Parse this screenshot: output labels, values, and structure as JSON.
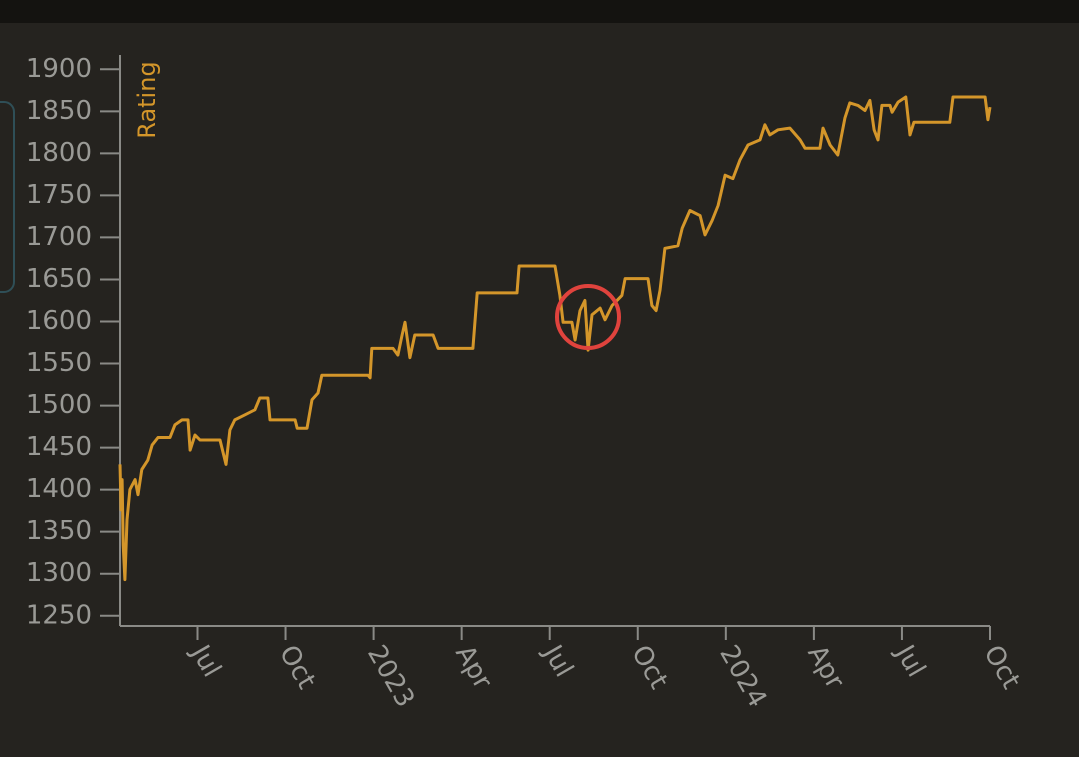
{
  "chart_data": {
    "type": "line",
    "y_label": "Rating",
    "color": "#d4962a",
    "x": [
      2022.28,
      2022.283,
      2022.286,
      2022.289,
      2022.294,
      2022.3,
      2022.308,
      2022.323,
      2022.331,
      2022.342,
      2022.359,
      2022.371,
      2022.388,
      2022.422,
      2022.436,
      2022.456,
      2022.473,
      2022.479,
      2022.493,
      2022.507,
      2022.564,
      2022.581,
      2022.592,
      2022.606,
      2022.635,
      2022.663,
      2022.677,
      2022.7,
      2022.706,
      2022.777,
      2022.783,
      2022.811,
      2022.825,
      2022.842,
      2022.853,
      2022.984,
      2022.99,
      2022.995,
      2023.055,
      2023.069,
      2023.081,
      2023.089,
      2023.103,
      2023.117,
      2023.169,
      2023.183,
      2023.282,
      2023.294,
      2023.407,
      2023.413,
      2023.515,
      2023.529,
      2023.538,
      2023.563,
      2023.572,
      2023.586,
      2023.6,
      2023.609,
      2023.62,
      2023.643,
      2023.657,
      2023.677,
      2023.705,
      2023.714,
      2023.779,
      2023.79,
      2023.802,
      2023.813,
      2023.827,
      2023.864,
      2023.876,
      2023.898,
      2023.927,
      2023.941,
      2023.961,
      2023.978,
      2023.998,
      2024.02,
      2024.04,
      2024.063,
      2024.097,
      2024.111,
      2024.125,
      2024.148,
      2024.182,
      2024.211,
      2024.225,
      2024.267,
      2024.276,
      2024.296,
      2024.318,
      2024.338,
      2024.352,
      2024.375,
      2024.395,
      2024.409,
      2024.421,
      2024.432,
      2024.443,
      2024.466,
      2024.472,
      2024.489,
      2024.511,
      2024.523,
      2024.534,
      2024.636,
      2024.645,
      2024.736,
      2024.744,
      2024.75
    ],
    "values": [
      1430,
      1376,
      1412,
      1334,
      1293,
      1364,
      1400,
      1412,
      1394,
      1424,
      1435,
      1453,
      1462,
      1462,
      1477,
      1483,
      1483,
      1447,
      1465,
      1459,
      1459,
      1430,
      1471,
      1483,
      1489,
      1495,
      1509,
      1509,
      1483,
      1483,
      1473,
      1473,
      1507,
      1515,
      1536,
      1536,
      1533,
      1568,
      1568,
      1560,
      1584,
      1599,
      1557,
      1584,
      1584,
      1568,
      1568,
      1634,
      1634,
      1666,
      1666,
      1631,
      1599,
      1599,
      1578,
      1613,
      1625,
      1566,
      1608,
      1616,
      1602,
      1619,
      1631,
      1651,
      1651,
      1619,
      1613,
      1637,
      1687,
      1690,
      1711,
      1732,
      1726,
      1703,
      1720,
      1738,
      1774,
      1770,
      1792,
      1810,
      1816,
      1834,
      1822,
      1828,
      1830,
      1816,
      1806,
      1806,
      1830,
      1810,
      1798,
      1842,
      1860,
      1857,
      1851,
      1863,
      1828,
      1816,
      1857,
      1857,
      1849,
      1861,
      1867,
      1822,
      1837,
      1837,
      1867,
      1867,
      1840,
      1855
    ],
    "xlim": [
      2022.28,
      2024.75
    ],
    "xticks": [
      {
        "value": 2022.5,
        "label": "Jul"
      },
      {
        "value": 2022.75,
        "label": "Oct"
      },
      2023,
      {
        "value": 2023.25,
        "label": "Apr"
      },
      {
        "value": 2023.5,
        "label": "Jul"
      },
      {
        "value": 2023.75,
        "label": "Oct"
      },
      2024,
      {
        "value": 2024.25,
        "label": "Apr"
      },
      {
        "value": 2024.5,
        "label": "Jul"
      },
      {
        "value": 2024.75,
        "label": "Oct"
      }
    ],
    "ylim": [
      1239,
      1917
    ],
    "yticks": [
      1250,
      1300,
      1350,
      1400,
      1450,
      1500,
      1550,
      1600,
      1650,
      1700,
      1750,
      1800,
      1850,
      1900
    ]
  }
}
